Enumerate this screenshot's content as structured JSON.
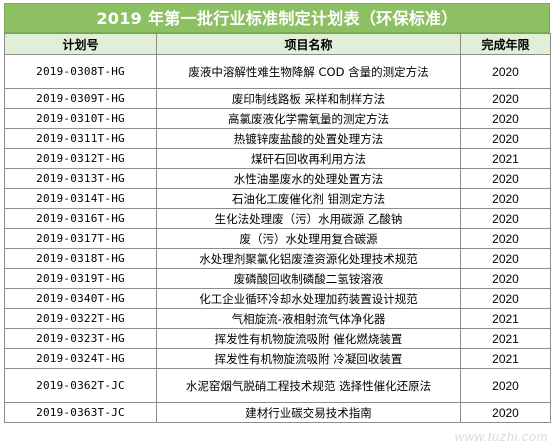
{
  "title": "2019 年第一批行业标准制定计划表（环保标准）",
  "headers": {
    "plan_no": "计划号",
    "project_name": "项目名称",
    "completion_year": "完成年限"
  },
  "rows": [
    {
      "plan_no": "2019-0308T-HG",
      "name": "废液中溶解性难生物降解 COD 含量的测定方法",
      "year": "2020"
    },
    {
      "plan_no": "2019-0309T-HG",
      "name": "废印制线路板 采样和制样方法",
      "year": "2020"
    },
    {
      "plan_no": "2019-0310T-HG",
      "name": "高氯废液化学需氧量的测定方法",
      "year": "2020"
    },
    {
      "plan_no": "2019-0311T-HG",
      "name": "热镀锌废盐酸的处置处理方法",
      "year": "2020"
    },
    {
      "plan_no": "2019-0312T-HG",
      "name": "煤矸石回收再利用方法",
      "year": "2021"
    },
    {
      "plan_no": "2019-0313T-HG",
      "name": "水性油墨废水的处理处置方法",
      "year": "2020"
    },
    {
      "plan_no": "2019-0314T-HG",
      "name": "石油化工废催化剂 钼测定方法",
      "year": "2020"
    },
    {
      "plan_no": "2019-0316T-HG",
      "name": "生化法处理废（污）水用碳源 乙酸钠",
      "year": "2020"
    },
    {
      "plan_no": "2019-0317T-HG",
      "name": "废（污）水处理用复合碳源",
      "year": "2020"
    },
    {
      "plan_no": "2019-0318T-HG",
      "name": "水处理剂聚氯化铝废渣资源化处理技术规范",
      "year": "2020"
    },
    {
      "plan_no": "2019-0319T-HG",
      "name": "废磷酸回收制磷酸二氢铵溶液",
      "year": "2020"
    },
    {
      "plan_no": "2019-0340T-HG",
      "name": "化工企业循环冷却水处理加药装置设计规范",
      "year": "2020"
    },
    {
      "plan_no": "2019-0322T-HG",
      "name": "气相旋流-液相射流气体净化器",
      "year": "2021"
    },
    {
      "plan_no": "2019-0323T-HG",
      "name": "挥发性有机物旋流吸附 催化燃烧装置",
      "year": "2021"
    },
    {
      "plan_no": "2019-0324T-HG",
      "name": "挥发性有机物旋流吸附 冷凝回收装置",
      "year": "2021"
    },
    {
      "plan_no": "2019-0362T-JC",
      "name": "水泥窑烟气脱硝工程技术规范 选择性催化还原法",
      "year": "2020"
    },
    {
      "plan_no": "2019-0363T-JC",
      "name": "建材行业碳交易技术指南",
      "year": "2020"
    }
  ],
  "watermark": "www.tuzhi.com",
  "colors": {
    "title_bg": "#8cc063",
    "header_bg": "#e2efd8",
    "border": "#8c8c8c"
  }
}
